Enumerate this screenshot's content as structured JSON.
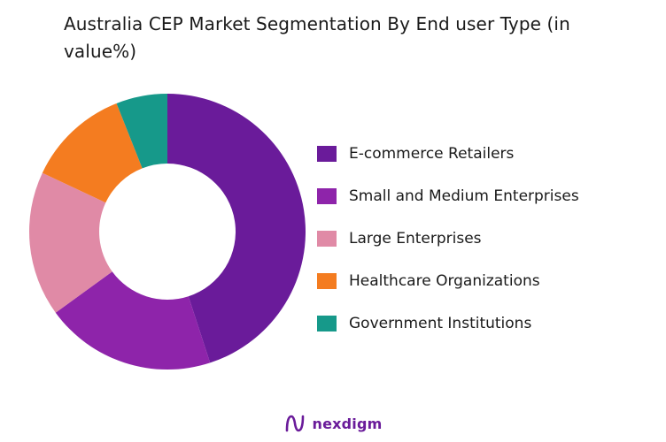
{
  "chart_data": {
    "type": "pie",
    "donut": true,
    "title": "Australia CEP Market Segmentation By End user Type (in value%)",
    "legend_position": "right",
    "series": [
      {
        "name": "E-commerce Retailers",
        "value": 45,
        "color": "#6a1b9a"
      },
      {
        "name": "Small and Medium Enterprises",
        "value": 20,
        "color": "#8e24aa"
      },
      {
        "name": "Large Enterprises",
        "value": 17,
        "color": "#e08aa6"
      },
      {
        "name": "Healthcare Organizations",
        "value": 12,
        "color": "#f47c20"
      },
      {
        "name": "Government Institutions",
        "value": 6,
        "color": "#16998a"
      }
    ]
  },
  "brand": {
    "name": "nexdigm",
    "icon": "nexdigm-logo-icon"
  }
}
